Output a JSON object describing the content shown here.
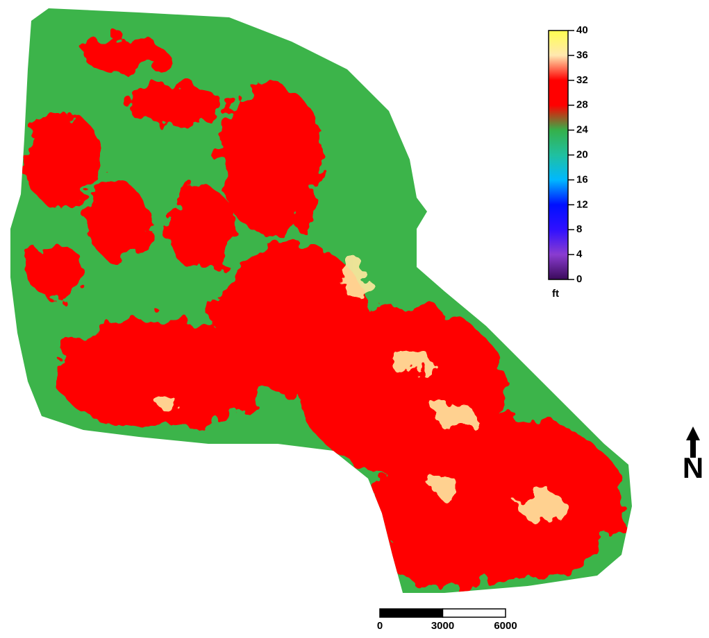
{
  "colorbar": {
    "range": [
      0,
      40
    ],
    "ticks": [
      0,
      4,
      8,
      12,
      16,
      20,
      24,
      28,
      32,
      36,
      40
    ],
    "unit": "ft",
    "colors": [
      "#3a0a5a",
      "#8a3cd0",
      "#3010ff",
      "#0010ff",
      "#00b8ff",
      "#20c0a0",
      "#35b04a",
      "#ff0000",
      "#ff0000",
      "#ffe8b0",
      "#ffff50"
    ]
  },
  "scale_bar": {
    "range": [
      0,
      6000
    ],
    "labels": [
      0,
      3000,
      6000
    ]
  },
  "north_arrow": {
    "label": "N"
  }
}
